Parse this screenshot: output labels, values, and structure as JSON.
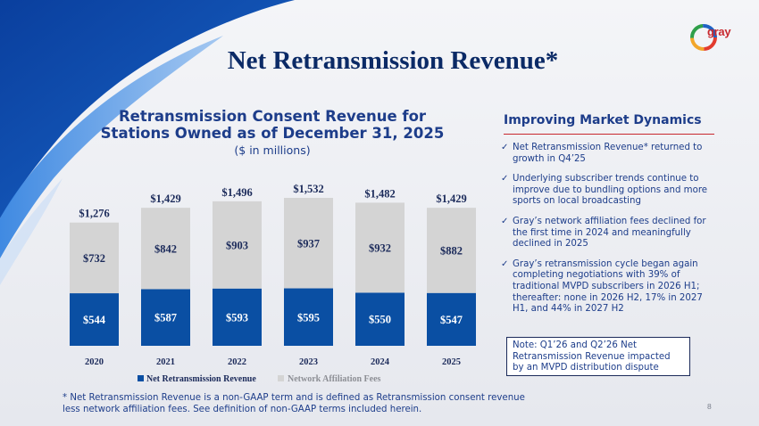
{
  "slide": {
    "title": "Net Retransmission Revenue*",
    "logo_text": "gray",
    "page_number": "8",
    "footnote": "* Net Retransmission Revenue is a non-GAAP term and is defined as Retransmission consent revenue less network affiliation fees. See definition of non-GAAP terms included herein."
  },
  "colors": {
    "net_retrans": "#0a4fa3",
    "affiliation_fees": "#d4d4d4",
    "title": "#0b2a66",
    "accent_red": "#c8282e"
  },
  "chart_data": {
    "type": "bar",
    "stacked": true,
    "title": "Retransmission Consent Revenue for Stations Owned as of December 31, 2025",
    "subtitle": "($ in millions)",
    "categories": [
      "2020",
      "2021",
      "2022",
      "2023",
      "2024",
      "2025"
    ],
    "series": [
      {
        "name": "Net Retransmission Revenue",
        "values": [
          544,
          587,
          593,
          595,
          550,
          547
        ],
        "labels": [
          "$544",
          "$587",
          "$593",
          "$595",
          "$550",
          "$547"
        ]
      },
      {
        "name": "Network Affiliation Fees",
        "values": [
          732,
          842,
          903,
          937,
          932,
          882
        ],
        "labels": [
          "$732",
          "$842",
          "$903",
          "$937",
          "$932",
          "$882"
        ]
      }
    ],
    "totals": [
      1276,
      1429,
      1496,
      1532,
      1482,
      1429
    ],
    "total_labels": [
      "$1,276",
      "$1,429",
      "$1,496",
      "$1,532",
      "$1,482",
      "$1,429"
    ],
    "ylim": [
      0,
      1600
    ],
    "grid": false,
    "legend_position": "bottom"
  },
  "panel": {
    "title": "Improving Market Dynamics",
    "bullets": [
      "Net Retransmission Revenue* returned to growth in Q4’25",
      "Underlying subscriber trends continue to improve due to bundling options and more sports on local broadcasting",
      "Gray’s network affiliation fees declined for the first time in 2024 and meaningfully declined in 2025",
      "Gray’s retransmission cycle began again completing negotiations with 39% of traditional MVPD subscribers in 2026 H1; thereafter: none in 2026 H2, 17% in 2027 H1, and 44% in 2027 H2"
    ],
    "note": "Note: Q1’26 and Q2’26 Net Retransmission Revenue impacted by an MVPD distribution dispute"
  }
}
